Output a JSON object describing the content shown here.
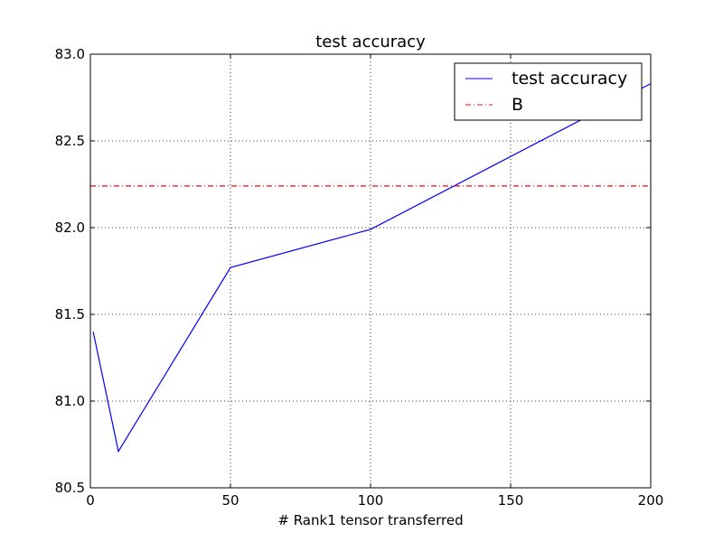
{
  "chart_data": {
    "type": "line",
    "title": "test accuracy",
    "xlabel": "# Rank1 tensor transferred",
    "ylabel": "",
    "xlim": [
      0,
      200
    ],
    "ylim": [
      80.5,
      83.0
    ],
    "x_ticks": [
      0,
      50,
      100,
      150,
      200
    ],
    "y_ticks": [
      80.5,
      81.0,
      81.5,
      82.0,
      82.5,
      83.0
    ],
    "x_tick_labels": [
      "0",
      "50",
      "100",
      "150",
      "200"
    ],
    "y_tick_labels": [
      "80.5",
      "81.0",
      "81.5",
      "82.0",
      "82.5",
      "83.0"
    ],
    "grid": true,
    "legend_position": "top-right",
    "series": [
      {
        "name": "test accuracy",
        "style": "solid",
        "color": "#0000ff",
        "x": [
          1,
          10,
          50,
          100,
          200
        ],
        "y": [
          81.4,
          80.71,
          81.77,
          81.99,
          82.83
        ]
      },
      {
        "name": "B",
        "style": "dashdot",
        "color": "#ff0000",
        "x": [
          0,
          200
        ],
        "y": [
          82.24,
          82.24
        ]
      }
    ]
  }
}
